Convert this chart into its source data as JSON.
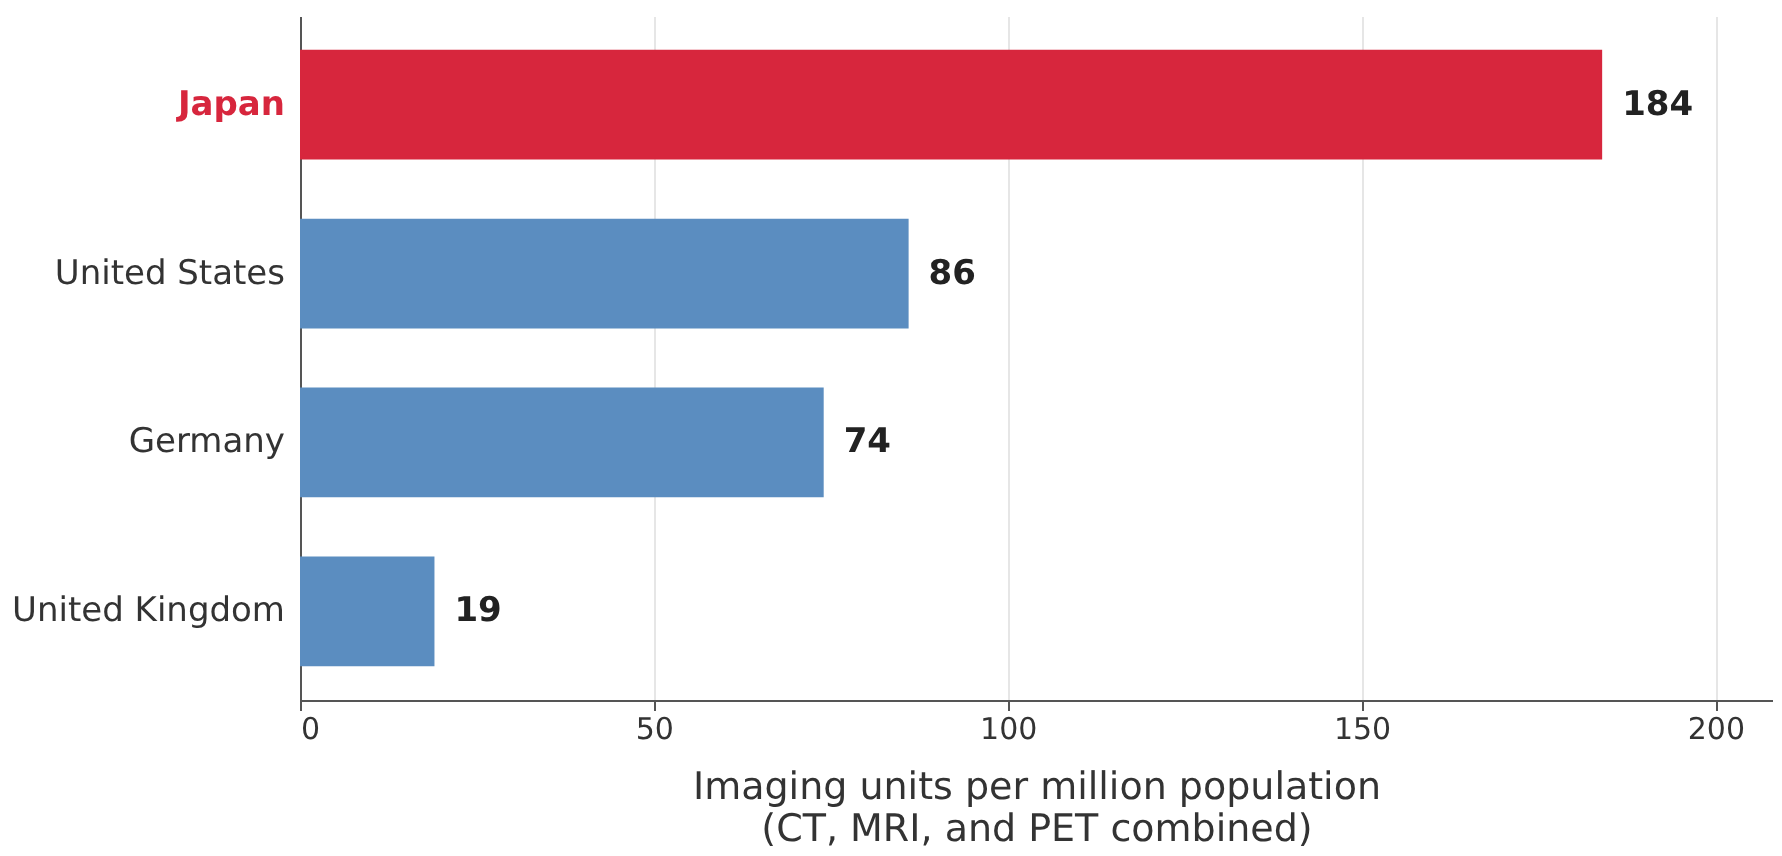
{
  "chart_data": {
    "type": "bar",
    "orientation": "horizontal",
    "categories": [
      "Japan",
      "United States",
      "Germany",
      "United Kingdom"
    ],
    "values": [
      184,
      86,
      74,
      19
    ],
    "colors": [
      "#d7263d",
      "#5b8dc0",
      "#5b8dc0",
      "#5b8dc0"
    ],
    "xlabel": "Imaging units per million population\n(CT, MRI, and PET combined)",
    "xlim": [
      0,
      208
    ],
    "xticks": [
      0,
      50,
      100,
      150,
      200
    ],
    "grid": "x",
    "data_labels": true
  }
}
